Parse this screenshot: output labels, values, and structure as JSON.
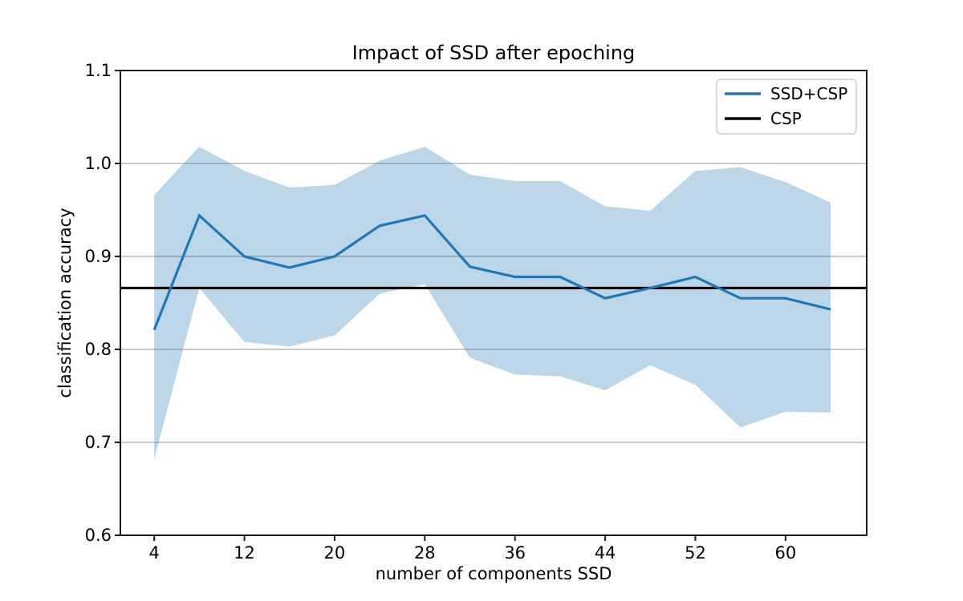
{
  "chart_data": {
    "type": "line",
    "title": "Impact of SSD after epoching",
    "xlabel": "number of components SSD",
    "ylabel": "classification accuracy",
    "xlim": [
      1.0,
      67.2
    ],
    "ylim": [
      0.6,
      1.1
    ],
    "xticks": [
      4,
      12,
      20,
      28,
      36,
      44,
      52,
      60
    ],
    "yticks": [
      0.6,
      0.7,
      0.8,
      0.9,
      1.0,
      1.1
    ],
    "yticklabels": [
      "0.6",
      "0.7",
      "0.8",
      "0.9",
      "1.0",
      "1.1"
    ],
    "grid": "horizontal",
    "x": [
      4,
      8,
      12,
      16,
      20,
      24,
      28,
      32,
      36,
      40,
      44,
      48,
      52,
      56,
      60,
      64
    ],
    "series": [
      {
        "name": "SSD+CSP",
        "kind": "line-with-band",
        "color": "#1f77b4",
        "values": [
          0.821,
          0.944,
          0.9,
          0.888,
          0.9,
          0.933,
          0.944,
          0.889,
          0.878,
          0.878,
          0.855,
          0.866,
          0.878,
          0.855,
          0.855,
          0.843
        ],
        "band_upper": [
          0.966,
          1.018,
          0.992,
          0.974,
          0.977,
          1.003,
          1.018,
          0.988,
          0.981,
          0.981,
          0.954,
          0.949,
          0.992,
          0.996,
          0.98,
          0.958
        ],
        "band_lower": [
          0.682,
          0.866,
          0.808,
          0.803,
          0.815,
          0.86,
          0.87,
          0.791,
          0.773,
          0.771,
          0.756,
          0.783,
          0.762,
          0.716,
          0.733,
          0.732
        ],
        "band_opacity": 0.3
      },
      {
        "name": "CSP",
        "kind": "hline",
        "color": "#000000",
        "value": 0.866
      }
    ],
    "legend": {
      "position": "upper right",
      "entries": [
        {
          "label": "SSD+CSP",
          "color": "#1f77b4"
        },
        {
          "label": "CSP",
          "color": "#000000"
        }
      ]
    }
  },
  "colors": {
    "background": "#ffffff",
    "spine": "#1a1a1a",
    "grid": "#b8b8b8",
    "text": "#000000",
    "legend_border": "#cccccc",
    "legend_bg": "#ffffff",
    "accent_line": "#1f77b4",
    "reference_line": "#000000"
  }
}
